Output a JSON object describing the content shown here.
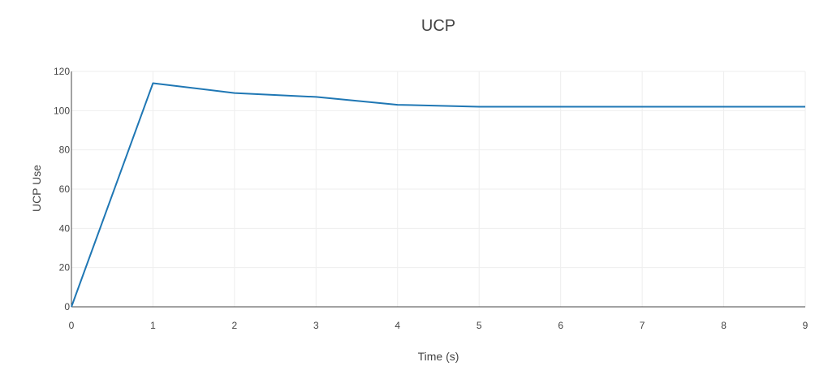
{
  "colors": {
    "line": "#1f77b4",
    "grid": "#eeeeee",
    "axis": "#444444",
    "text": "#444444"
  },
  "chart_data": {
    "type": "line",
    "title": "UCP",
    "xlabel": "Time (s)",
    "ylabel": "UCP Use",
    "xlim": [
      0,
      9
    ],
    "ylim": [
      0,
      120
    ],
    "grid": true,
    "x_ticks": [
      0,
      1,
      2,
      3,
      4,
      5,
      6,
      7,
      8,
      9
    ],
    "y_ticks": [
      0,
      20,
      40,
      60,
      80,
      100,
      120
    ],
    "series": [
      {
        "x": [
          0,
          1,
          2,
          3,
          4,
          5,
          6,
          7,
          8,
          9
        ],
        "y": [
          0,
          114,
          109,
          107,
          103,
          102,
          102,
          102,
          102,
          102
        ]
      }
    ]
  }
}
